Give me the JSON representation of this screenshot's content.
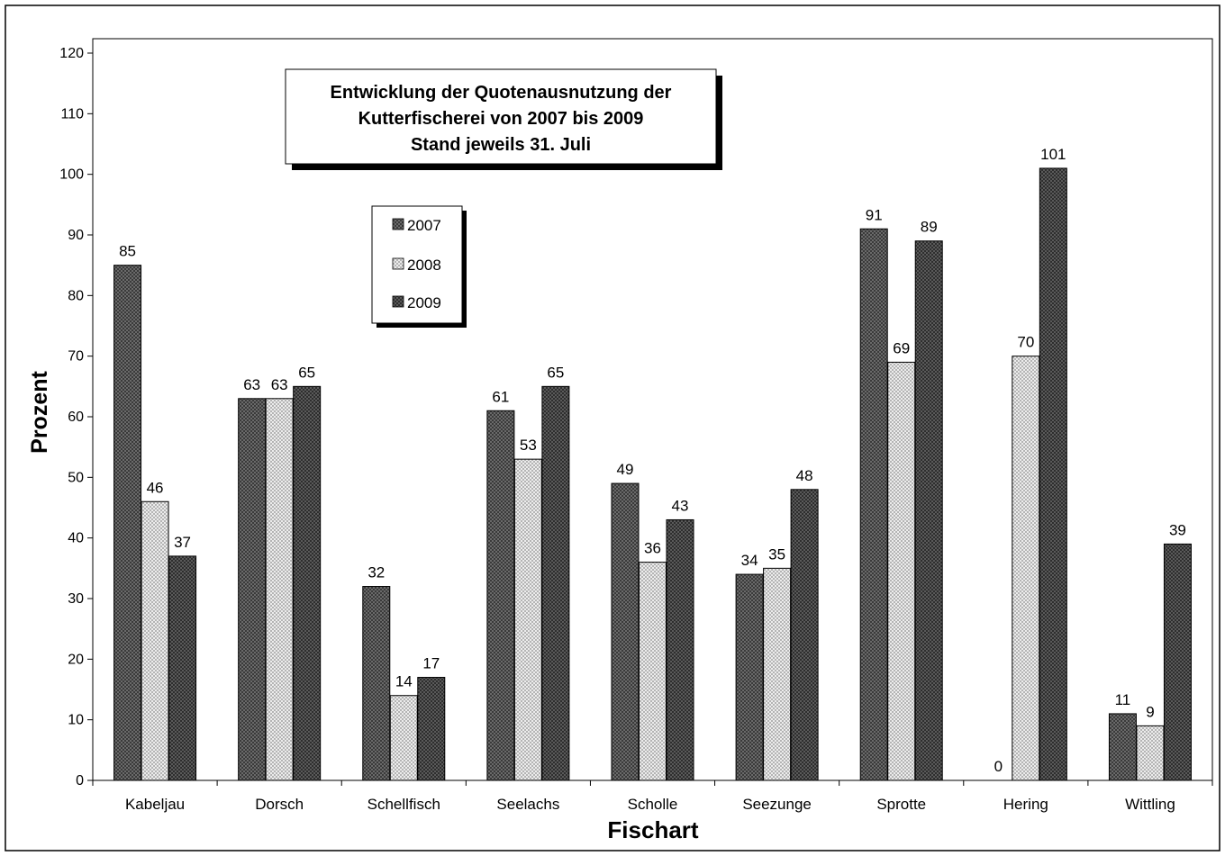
{
  "chart_data": {
    "type": "bar",
    "title_lines": [
      "Entwicklung der Quotenausnutzung der",
      "Kutterfischerei von 2007 bis 2009",
      "Stand jeweils 31. Juli"
    ],
    "xlabel": "Fischart",
    "ylabel": "Prozent",
    "ylim": [
      0,
      120
    ],
    "yticks": [
      0,
      10,
      20,
      30,
      40,
      50,
      60,
      70,
      80,
      90,
      100,
      110,
      120
    ],
    "grid": false,
    "legend_position": "top-left",
    "categories": [
      "Kabeljau",
      "Dorsch",
      "Schellfisch",
      "Seelachs",
      "Scholle",
      "Seezunge",
      "Sprotte",
      "Hering",
      "Wittling"
    ],
    "series": [
      {
        "name": "2007",
        "color": "#5c5c5c",
        "values": [
          85,
          63,
          32,
          61,
          49,
          34,
          91,
          0,
          11
        ],
        "labels": [
          "85",
          "63",
          "32",
          "61",
          "49",
          "34",
          "91",
          "0",
          "11"
        ]
      },
      {
        "name": "2008",
        "color": "#d6d6d6",
        "values": [
          46,
          63,
          14,
          53,
          36,
          35,
          69,
          70,
          9
        ],
        "labels": [
          "46",
          "63",
          "14",
          "53",
          "36",
          "35",
          "69",
          "70",
          "9"
        ]
      },
      {
        "name": "2009",
        "color": "#4a4a4a",
        "values": [
          37,
          65,
          17,
          65,
          43,
          48,
          89,
          101,
          39
        ],
        "labels": [
          "37",
          "65",
          "17",
          "65",
          "43",
          "48",
          "89",
          "101",
          "39"
        ]
      }
    ]
  }
}
